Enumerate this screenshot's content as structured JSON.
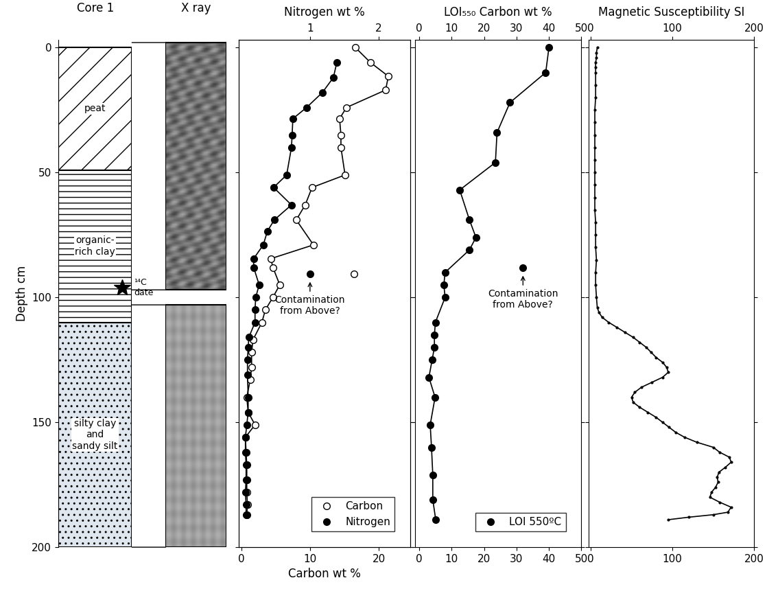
{
  "chart_data": [
    {
      "type": "lithology",
      "title": "Core 1",
      "ylabel": "Depth cm",
      "ylim": [
        200,
        -3
      ],
      "yticks": [
        0,
        50,
        100,
        150,
        200
      ],
      "tick_labels": "y",
      "layers": [
        {
          "name": "peat",
          "top": 0,
          "bottom": 49
        },
        {
          "name": "organic-\nrich clay",
          "top": 49,
          "bottom": 110
        },
        {
          "name": "silty clay\nand\nsandy silt",
          "top": 110,
          "bottom": 200
        }
      ],
      "date_marker": {
        "label": "¹⁴C\ndate",
        "depth": 96
      }
    },
    {
      "type": "image",
      "title": "X ray",
      "ylim": [
        200,
        -3
      ],
      "sections": [
        {
          "top": -2,
          "bottom": 97
        },
        {
          "top": 103,
          "bottom": 200
        }
      ]
    },
    {
      "type": "line",
      "title": "Nitrogen wt %",
      "xlabel": "Carbon wt %",
      "xlim": [
        -0.4,
        24.6
      ],
      "xticks": [
        0,
        10,
        20
      ],
      "x2lim": [
        -0.04,
        2.46
      ],
      "x2ticks": [
        1,
        2
      ],
      "ylim": [
        200,
        -3
      ],
      "yticks": [
        0,
        50,
        100,
        150,
        200
      ],
      "tick_labels": "x",
      "legend": "lower right",
      "series": [
        {
          "name": "Carbon",
          "color": "#000000",
          "marker": "open circle",
          "depth": [
            0,
            6,
            11.5,
            17,
            24,
            28.5,
            35,
            40,
            51,
            56,
            63,
            69,
            79,
            84.5,
            88,
            95,
            100,
            105,
            110,
            117,
            122,
            128,
            133,
            140,
            146,
            151,
            156,
            162,
            167,
            173,
            178,
            183,
            187
          ],
          "values": [
            16.6,
            18.8,
            21.4,
            21.0,
            15.3,
            14.3,
            14.5,
            14.5,
            15.1,
            10.3,
            9.3,
            8.0,
            10.5,
            4.3,
            4.6,
            5.6,
            4.6,
            3.5,
            3.0,
            1.7,
            1.5,
            1.5,
            1.3,
            0.8,
            1.0,
            2.0,
            0.6,
            0.7,
            0.8,
            0.8,
            0.8,
            0.9,
            0.8
          ],
          "outlier": {
            "depth": 90.5,
            "value": 16.4
          }
        },
        {
          "name": "Nitrogen",
          "color": "#000000",
          "marker": "filled circle",
          "axis": "x2",
          "depth": [
            6,
            12,
            18,
            24,
            28.5,
            35,
            40,
            51,
            56,
            63,
            69,
            73.5,
            79,
            84.5,
            88,
            95,
            100,
            105,
            110,
            116,
            120,
            125,
            131,
            140,
            146,
            151,
            156,
            162,
            167,
            173,
            178,
            183,
            187
          ],
          "values": [
            1.39,
            1.34,
            1.18,
            0.95,
            0.75,
            0.74,
            0.73,
            0.66,
            0.47,
            0.73,
            0.48,
            0.38,
            0.32,
            0.18,
            0.18,
            0.26,
            0.21,
            0.2,
            0.2,
            0.11,
            0.1,
            0.09,
            0.09,
            0.1,
            0.1,
            0.08,
            0.06,
            0.06,
            0.07,
            0.07,
            0.06,
            0.07,
            0.07
          ],
          "outlier": {
            "depth": 90.5,
            "value": 1.0
          }
        }
      ],
      "annotations": [
        {
          "text": "Contamination\nfrom Above?",
          "series": "Nitrogen"
        }
      ]
    },
    {
      "type": "line",
      "title": "LOI₅₅₀ Carbon wt %",
      "xlim": [
        -1.3,
        50
      ],
      "xticks": [
        0,
        10,
        20,
        30,
        40,
        50
      ],
      "ylim": [
        200,
        -3
      ],
      "yticks": [
        0,
        50,
        100,
        150,
        200
      ],
      "tick_labels": "x",
      "legend": "lower right",
      "series": [
        {
          "name": "LOI 550ºC",
          "color": "#000000",
          "marker": "filled circle",
          "depth": [
            0,
            10,
            22,
            34,
            46,
            57,
            69,
            76,
            81,
            90,
            95,
            100,
            110,
            115,
            120,
            125,
            132,
            140,
            151,
            160,
            171,
            181,
            189
          ],
          "values": [
            40,
            39,
            28,
            24,
            23.5,
            12.5,
            15.5,
            17.5,
            15.5,
            8,
            7.6,
            8,
            5,
            4.7,
            4.7,
            4,
            3,
            4.9,
            3.4,
            3.8,
            4.2,
            4.2,
            5.1
          ],
          "outlier": {
            "depth": 88,
            "value": 32
          }
        }
      ],
      "annotations": [
        {
          "text": "Contamination\nfrom Above?",
          "series": "LOI 550ºC"
        }
      ]
    },
    {
      "type": "line",
      "title": "Magnetic Susceptibility SI",
      "xlim": [
        -3,
        200
      ],
      "xticks": [
        0,
        100,
        200
      ],
      "ylim": [
        200,
        -3
      ],
      "yticks": [
        0,
        50,
        100,
        150,
        200
      ],
      "tick_labels": "x",
      "series": [
        {
          "name": "Magnetic Susceptibility",
          "color": "#000000",
          "marker": "dot",
          "depth": [
            0,
            2,
            4,
            6,
            8,
            10,
            15,
            20,
            25,
            30,
            35,
            40,
            45,
            50,
            55,
            60,
            65,
            70,
            75,
            80,
            85,
            90,
            95,
            100,
            104,
            106,
            108,
            110,
            112,
            114,
            116,
            118,
            120,
            122,
            124,
            126,
            128,
            130,
            132,
            134,
            136,
            138,
            140,
            142,
            144,
            146,
            148,
            150,
            152,
            154,
            156,
            158,
            160,
            162,
            164,
            166,
            168,
            170,
            172,
            174,
            176,
            178,
            180,
            182,
            184,
            186,
            187,
            188,
            189
          ],
          "values": [
            8,
            7,
            7,
            6,
            6,
            6,
            6,
            6,
            5,
            5,
            5,
            5,
            5,
            5,
            5,
            5,
            5,
            6,
            6,
            6,
            7,
            6,
            6,
            7,
            8,
            10,
            14,
            22,
            32,
            42,
            52,
            60,
            68,
            74,
            80,
            88,
            93,
            95,
            88,
            75,
            62,
            54,
            50,
            52,
            60,
            70,
            80,
            88,
            96,
            104,
            115,
            130,
            150,
            158,
            170,
            172,
            165,
            157,
            155,
            156,
            153,
            148,
            146,
            158,
            172,
            168,
            150,
            120,
            95
          ]
        }
      ]
    }
  ]
}
